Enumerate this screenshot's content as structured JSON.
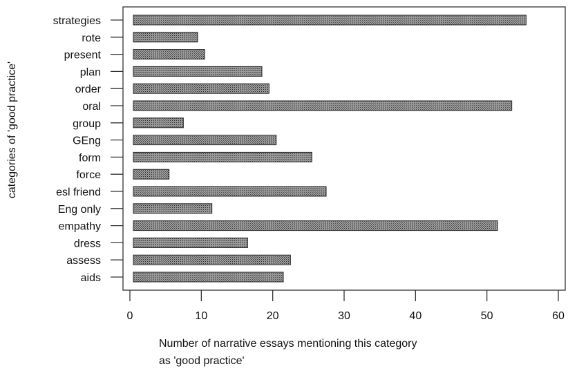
{
  "chart_data": {
    "type": "bar",
    "orientation": "horizontal",
    "categories": [
      "strategies",
      "rote",
      "present",
      "plan",
      "order",
      "oral",
      "group",
      "GEng",
      "form",
      "force",
      "esl friend",
      "Eng only",
      "empathy",
      "dress",
      "assess",
      "aids"
    ],
    "values": [
      55,
      9,
      10,
      18,
      19,
      53,
      7,
      20,
      25,
      5,
      27,
      11,
      51,
      16,
      22,
      21
    ],
    "xlabel_lines": [
      "Number of narrative essays mentioning this category",
      "as 'good practice'"
    ],
    "ylabel": "categories of 'good practice'",
    "xlim": [
      0,
      60
    ],
    "xticks": [
      "0",
      "10",
      "20",
      "30",
      "40",
      "50",
      "60"
    ],
    "bar_color": "#8a8a8a",
    "grid": false
  }
}
